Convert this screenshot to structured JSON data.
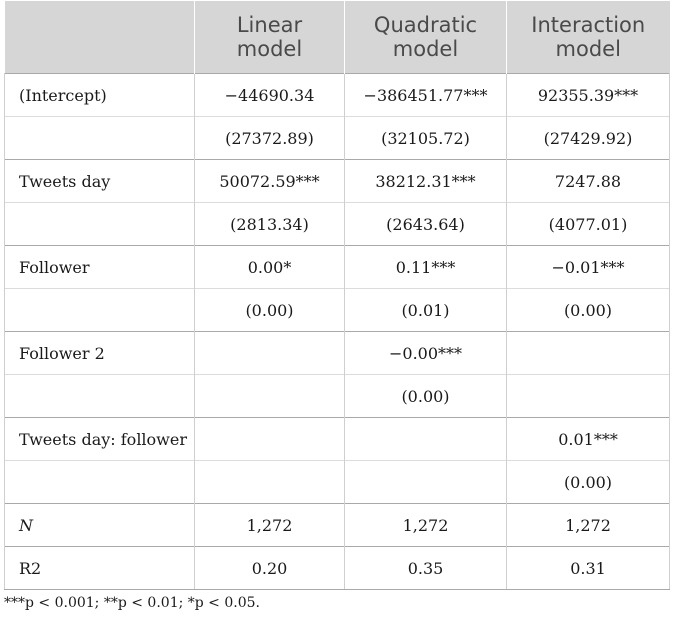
{
  "header": [
    "",
    "Linear model",
    "Quadratic model",
    "Interaction model"
  ],
  "rows": [
    {
      "label": "(Intercept)",
      "coef": [
        "−44690.34",
        "−386451.77***",
        "92355.39***"
      ],
      "se": [
        "(27372.89)",
        "(32105.72)",
        "(27429.92)"
      ]
    },
    {
      "label": "Tweets day",
      "coef": [
        "50072.59***",
        "38212.31***",
        "7247.88"
      ],
      "se": [
        "(2813.34)",
        "(2643.64)",
        "(4077.01)"
      ]
    },
    {
      "label": "Follower",
      "coef": [
        "0.00*",
        "0.11***",
        "−0.01***"
      ],
      "se": [
        "(0.00)",
        "(0.01)",
        "(0.00)"
      ]
    },
    {
      "label": "Follower 2",
      "coef": [
        "",
        "−0.00***",
        ""
      ],
      "se": [
        "",
        "(0.00)",
        ""
      ]
    },
    {
      "label": "Tweets day: follower",
      "coef": [
        "",
        "",
        "0.01***"
      ],
      "se": [
        "",
        "",
        "(0.00)"
      ]
    }
  ],
  "summary": [
    {
      "label": "N",
      "values": [
        "1,272",
        "1,272",
        "1,272"
      ]
    },
    {
      "label": "R2",
      "values": [
        "0.20",
        "0.35",
        "0.31"
      ]
    }
  ],
  "footnote": "***p < 0.001; **p < 0.01; *p < 0.05."
}
